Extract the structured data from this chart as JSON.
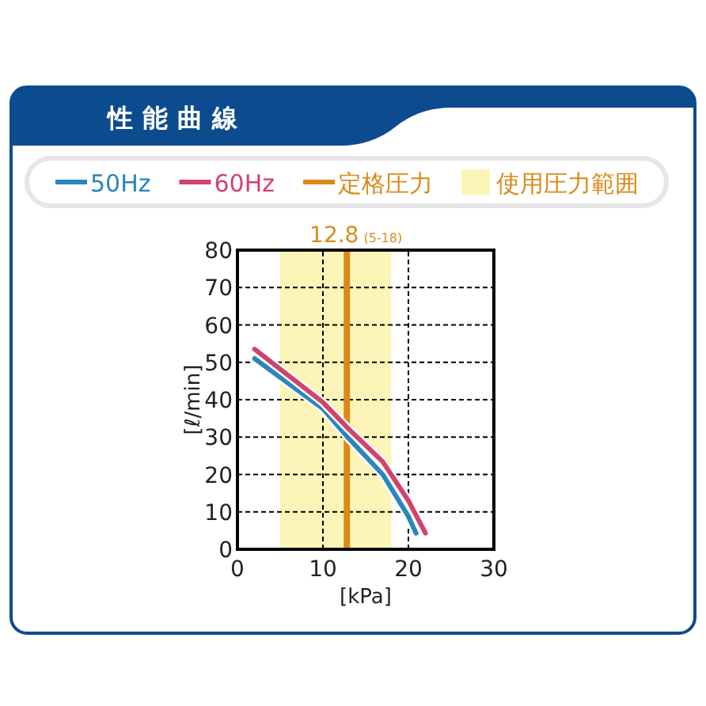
{
  "chart_data": {
    "type": "line",
    "title": "性能曲線",
    "xlabel": "[kPa]",
    "ylabel": "[ℓ/min]",
    "series": [
      {
        "name": "50Hz",
        "color": "#2a86bd",
        "x": [
          2,
          10,
          13,
          17,
          20,
          20.9
        ],
        "values": [
          51,
          37.6,
          29.7,
          20,
          8.8,
          4.3
        ]
      },
      {
        "name": "60Hz",
        "color": "#d0436f",
        "x": [
          2,
          10,
          13,
          17,
          20,
          22
        ],
        "values": [
          53.5,
          39.3,
          32.2,
          23.4,
          13,
          4.3
        ]
      }
    ],
    "xlim": [
      0,
      30
    ],
    "xticks": [
      0,
      10,
      20,
      30
    ],
    "ylim": [
      0,
      80
    ],
    "yticks": [
      0,
      10,
      20,
      30,
      40,
      50,
      60,
      70,
      80
    ],
    "ref_lines": [
      {
        "axis": "x",
        "value": 12.8,
        "label": "定格圧力",
        "color": "#d98a1a"
      }
    ],
    "bands": [
      {
        "axis": "x",
        "from": 5,
        "to": 18,
        "label": "使用圧力範囲",
        "color": "#fdf5b8"
      }
    ],
    "annotations": [
      "12.8",
      "(5-18)"
    ],
    "grid": true,
    "legend": "top"
  }
}
